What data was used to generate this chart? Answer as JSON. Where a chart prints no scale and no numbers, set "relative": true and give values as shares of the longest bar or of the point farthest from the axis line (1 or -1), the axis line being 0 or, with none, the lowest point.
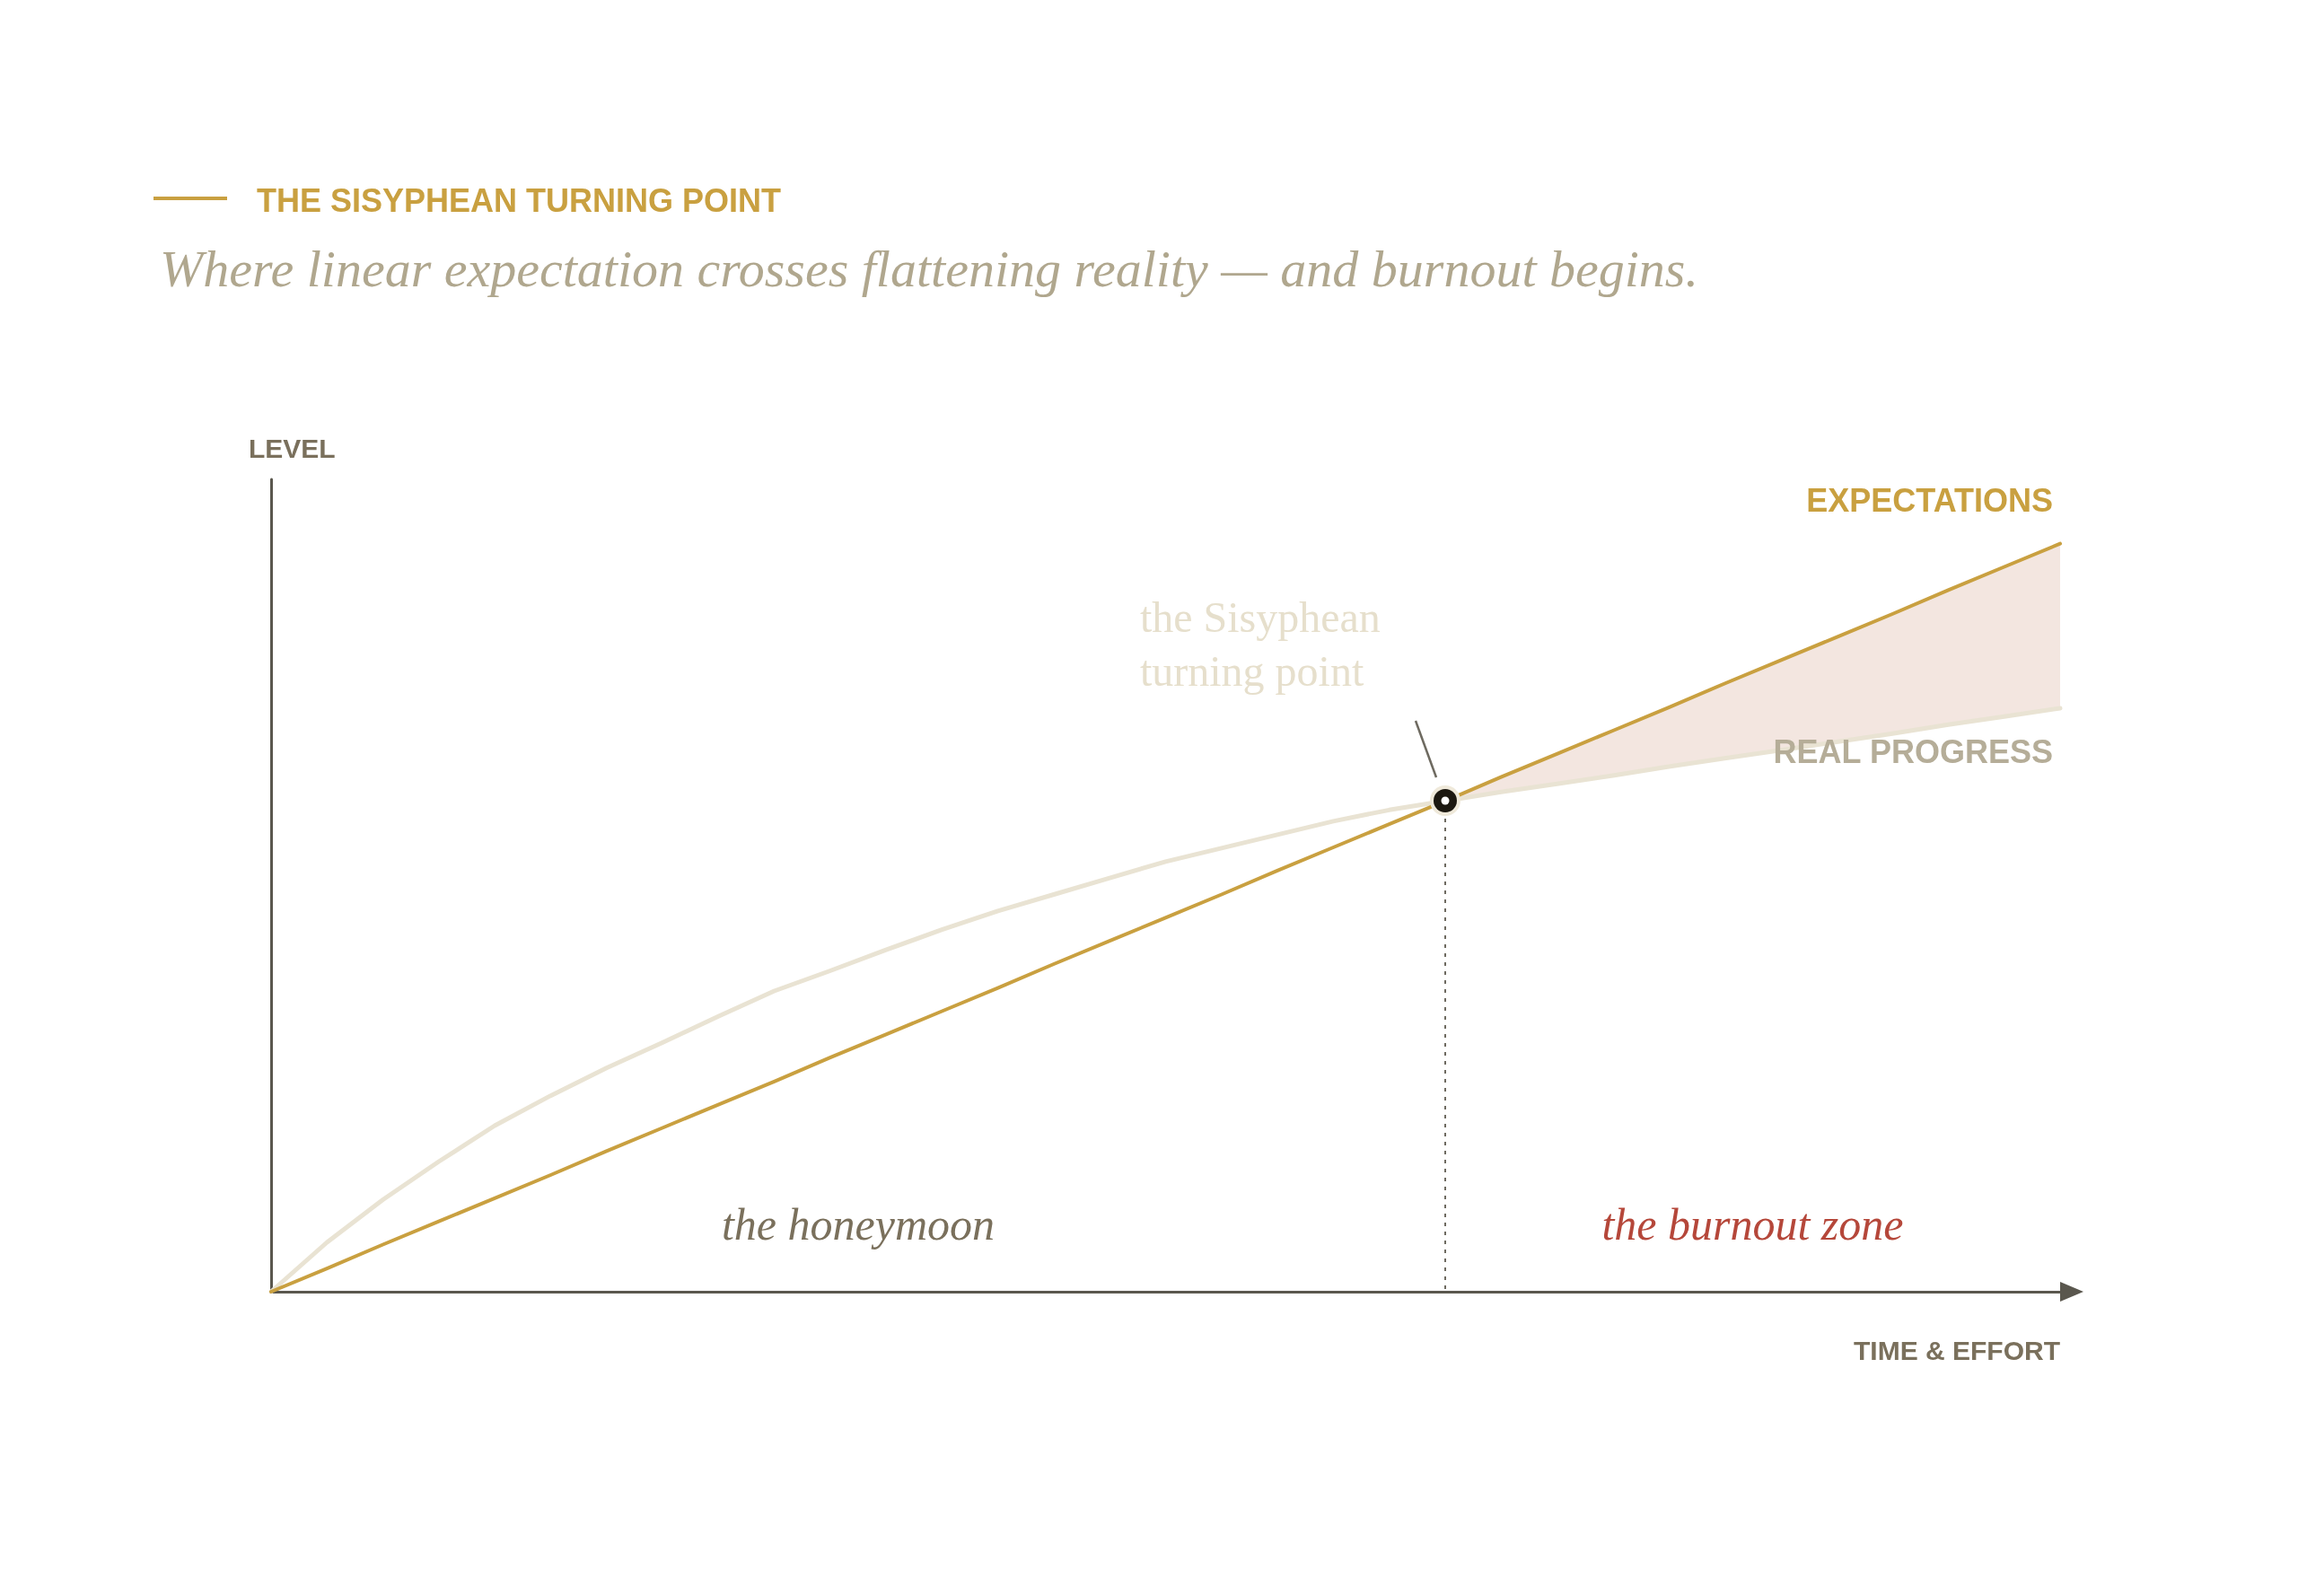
{
  "chart_data": {
    "type": "line",
    "relative": true,
    "title": "THE SISYPHEAN TURNING POINT",
    "subtitle": "Where linear expectation crosses flattening reality — and burnout begins.",
    "xlabel": "TIME & EFFORT",
    "ylabel": "LEVEL",
    "categories": [
      null,
      null,
      null,
      null,
      null,
      null,
      null,
      null,
      null,
      null,
      null,
      null,
      null,
      null,
      null,
      null,
      null,
      null,
      null,
      null,
      null,
      null,
      null,
      null,
      null,
      null,
      null,
      null,
      null,
      null,
      null,
      null,
      null
    ],
    "series": [
      {
        "name": "REAL PROGRESS",
        "color": "#e9e3d3",
        "values": [
          0,
          0.066,
          0.123,
          0.174,
          0.222,
          0.262,
          0.299,
          0.333,
          0.368,
          0.402,
          0.429,
          0.457,
          0.484,
          0.509,
          0.531,
          0.553,
          0.575,
          0.593,
          0.611,
          0.629,
          0.644,
          0.656,
          0.668,
          0.679,
          0.69,
          0.702,
          0.713,
          0.724,
          0.735,
          0.746,
          0.758,
          0.769,
          0.78
        ]
      },
      {
        "name": "EXPECTATIONS",
        "color": "#c9a040",
        "values": [
          0,
          0.031,
          0.063,
          0.094,
          0.125,
          0.156,
          0.188,
          0.219,
          0.25,
          0.281,
          0.313,
          0.344,
          0.375,
          0.406,
          0.438,
          0.469,
          0.5,
          0.531,
          0.563,
          0.594,
          0.625,
          0.656,
          0.688,
          0.719,
          0.75,
          0.781,
          0.813,
          0.844,
          0.875,
          0.906,
          0.938,
          0.969,
          1
        ],
        "lower": [
          null,
          null,
          null,
          null,
          null,
          null,
          null,
          null,
          null,
          null,
          null,
          null,
          null,
          null,
          null,
          null,
          null,
          null,
          null,
          null,
          null,
          0.656,
          0.668,
          0.679,
          0.69,
          0.702,
          0.713,
          0.724,
          0.735,
          0.746,
          0.758,
          0.769,
          0.78
        ],
        "upper": [
          null,
          null,
          null,
          null,
          null,
          null,
          null,
          null,
          null,
          null,
          null,
          null,
          null,
          null,
          null,
          null,
          null,
          null,
          null,
          null,
          null,
          0.656,
          0.688,
          0.719,
          0.75,
          0.781,
          0.813,
          0.844,
          0.875,
          0.906,
          0.938,
          0.969,
          1
        ]
      }
    ],
    "annotations": [
      "the Sisyphean turning point",
      "the honeymoon",
      "the burnout zone"
    ],
    "legend": false,
    "grid": false,
    "marker": "none",
    "line_style": "solid"
  }
}
